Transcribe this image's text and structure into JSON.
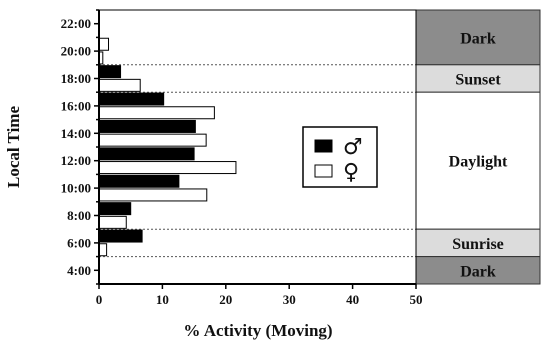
{
  "chart_data": {
    "type": "bar",
    "orientation": "horizontal",
    "xlabel": "% Activity (Moving)",
    "ylabel": "Local Time",
    "xlim": [
      0,
      50
    ],
    "xticks": [
      "0",
      "10",
      "20",
      "30",
      "40",
      "50"
    ],
    "ylim": [
      3,
      23
    ],
    "ytick_values": [
      4,
      6,
      8,
      10,
      12,
      14,
      16,
      18,
      20,
      22
    ],
    "yticks": [
      "4:00",
      "6:00",
      "8:00",
      "10:00",
      "12:00",
      "14:00",
      "16:00",
      "18:00",
      "20:00",
      "22:00"
    ],
    "legend": {
      "placement": "center-right",
      "entries": [
        {
          "symbol": "♂",
          "fill": "#000000"
        },
        {
          "symbol": "♀",
          "fill": "#ffffff"
        }
      ]
    },
    "series": [
      {
        "key": "male",
        "color": "#000000",
        "points": [
          {
            "hour": 6.5,
            "value": 6.8
          },
          {
            "hour": 8.5,
            "value": 5.0
          },
          {
            "hour": 10.5,
            "value": 12.6
          },
          {
            "hour": 12.5,
            "value": 15.0
          },
          {
            "hour": 14.5,
            "value": 15.2
          },
          {
            "hour": 16.5,
            "value": 10.2
          },
          {
            "hour": 18.5,
            "value": 3.4
          }
        ]
      },
      {
        "key": "female",
        "color": "#ffffff",
        "points": [
          {
            "hour": 5.5,
            "value": 1.2
          },
          {
            "hour": 7.5,
            "value": 4.3
          },
          {
            "hour": 9.5,
            "value": 17.0
          },
          {
            "hour": 11.5,
            "value": 21.6
          },
          {
            "hour": 13.5,
            "value": 16.9
          },
          {
            "hour": 15.5,
            "value": 18.2
          },
          {
            "hour": 17.5,
            "value": 6.5
          },
          {
            "hour": 19.5,
            "value": 0.6
          },
          {
            "hour": 20.5,
            "value": 1.5
          }
        ]
      }
    ],
    "periods": [
      {
        "label": "Dark",
        "from": 19,
        "to": 23,
        "color": "#8c8c8c"
      },
      {
        "label": "Sunset",
        "from": 17,
        "to": 19,
        "color": "#dcdcdc"
      },
      {
        "label": "Daylight",
        "from": 7,
        "to": 17,
        "color": "#ffffff"
      },
      {
        "label": "Sunrise",
        "from": 5,
        "to": 7,
        "color": "#dcdcdc"
      },
      {
        "label": "Dark",
        "from": 3,
        "to": 5,
        "color": "#8c8c8c"
      }
    ],
    "period_boundaries": [
      5,
      7,
      17,
      19
    ]
  }
}
